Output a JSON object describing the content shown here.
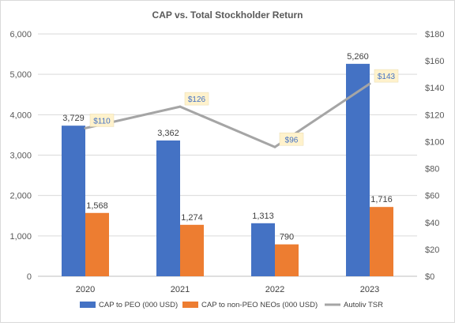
{
  "chart_data": {
    "type": "bar",
    "title": "CAP vs. Total Stockholder Return",
    "categories": [
      "2020",
      "2021",
      "2022",
      "2023"
    ],
    "series": [
      {
        "name": "CAP to PEO (000 USD)",
        "type": "bar",
        "axis": "left",
        "color": "#4472c4",
        "values": [
          3729,
          3362,
          1313,
          5260
        ],
        "labels": [
          "3,729",
          "3,362",
          "1,313",
          "5,260"
        ]
      },
      {
        "name": "CAP to non-PEO NEOs (000 USD)",
        "type": "bar",
        "axis": "left",
        "color": "#ed7d31",
        "values": [
          1568,
          1274,
          790,
          1716
        ],
        "labels": [
          "1,568",
          "1,274",
          "790",
          "1,716"
        ]
      },
      {
        "name": "Autoliv TSR",
        "type": "line",
        "axis": "right",
        "color": "#a5a5a5",
        "values": [
          110,
          126,
          96,
          143
        ],
        "labels": [
          "$110",
          "$126",
          "$96",
          "$143"
        ]
      }
    ],
    "y_left": {
      "ylim": [
        0,
        6000
      ],
      "ticks": [
        "0",
        "1,000",
        "2,000",
        "3,000",
        "4,000",
        "5,000",
        "6,000"
      ]
    },
    "y_right": {
      "ylim": [
        0,
        180
      ],
      "ticks": [
        "$0",
        "$20",
        "$40",
        "$60",
        "$80",
        "$100",
        "$120",
        "$140",
        "$160",
        "$180"
      ]
    },
    "grid": true,
    "legend": "bottom"
  }
}
